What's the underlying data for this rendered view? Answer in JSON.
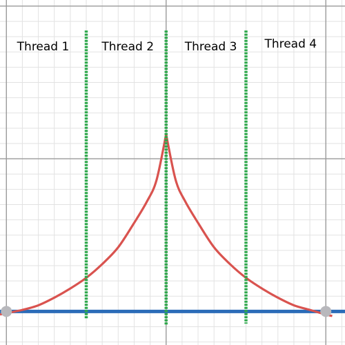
{
  "chart_data": {
    "type": "line",
    "title": "",
    "xlabel": "",
    "ylabel": "",
    "xlim": [
      -5.2,
      5.6
    ],
    "ylim": [
      -1.1,
      10.2
    ],
    "grid": true,
    "grid_minor_step": 0.5,
    "grid_major_step": 5,
    "curve": {
      "color": "#d9534f",
      "peak_x": 0,
      "peak_y": 5.8,
      "samples_x": [
        -5.2,
        -4.5,
        -4.0,
        -3.5,
        -3.0,
        -2.5,
        -2.0,
        -1.5,
        -1.0,
        -0.6,
        -0.3,
        0.0,
        0.3,
        0.6,
        1.0,
        1.5,
        2.0,
        2.5,
        3.0,
        3.5,
        4.0,
        4.5,
        5.0,
        5.2
      ],
      "samples_y": [
        -0.1,
        0.05,
        0.2,
        0.45,
        0.75,
        1.1,
        1.55,
        2.1,
        2.9,
        3.6,
        4.3,
        5.8,
        4.3,
        3.6,
        2.9,
        2.1,
        1.55,
        1.1,
        0.75,
        0.45,
        0.2,
        0.05,
        -0.1,
        -0.15
      ]
    },
    "baseline": {
      "color": "#2b6cb8",
      "y": 0
    },
    "points": [
      {
        "x": -5,
        "y": 0,
        "color": "#b8b8bc"
      },
      {
        "x": 5,
        "y": 0,
        "color": "#b8b8bc"
      }
    ],
    "dividers": {
      "color": "#2ca84a",
      "x": [
        -2.5,
        0,
        2.5
      ]
    },
    "labels": [
      {
        "text": "Thread 1",
        "x": -3.85
      },
      {
        "text": "Thread 2",
        "x": -1.2
      },
      {
        "text": "Thread 3",
        "x": 1.4
      },
      {
        "text": "Thread 4",
        "x": 3.9
      }
    ]
  }
}
